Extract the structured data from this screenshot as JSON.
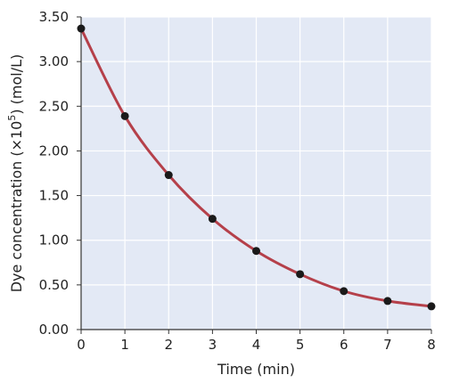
{
  "chart_data": {
    "type": "scatter",
    "title": "",
    "xlabel": "Time (min)",
    "ylabel": {
      "pre": "Dye concentration (×10",
      "sup": "5",
      "post": ") (mol/L)"
    },
    "xlim": [
      0,
      8
    ],
    "ylim": [
      0,
      3.5
    ],
    "x_ticks": [
      "0",
      "1",
      "2",
      "3",
      "4",
      "5",
      "6",
      "7",
      "8"
    ],
    "y_ticks": [
      "0.00",
      "0.50",
      "1.00",
      "1.50",
      "2.00",
      "2.50",
      "3.00",
      "3.50"
    ],
    "grid": true,
    "series": [
      {
        "points": [
          {
            "x": 0,
            "y": 3.37
          },
          {
            "x": 1,
            "y": 2.39
          },
          {
            "x": 2,
            "y": 1.73
          },
          {
            "x": 3,
            "y": 1.24
          },
          {
            "x": 4,
            "y": 0.88
          },
          {
            "x": 5,
            "y": 0.62
          },
          {
            "x": 6,
            "y": 0.43
          },
          {
            "x": 7,
            "y": 0.32
          },
          {
            "x": 8,
            "y": 0.26
          }
        ],
        "marker_color": "#1a1a1a"
      }
    ],
    "fit_curve": {
      "shape": "exponential decay",
      "color": "#b5404a"
    },
    "plot_background": "#e3e9f5",
    "grid_color": "#ffffff",
    "axis_color": "#333333"
  }
}
